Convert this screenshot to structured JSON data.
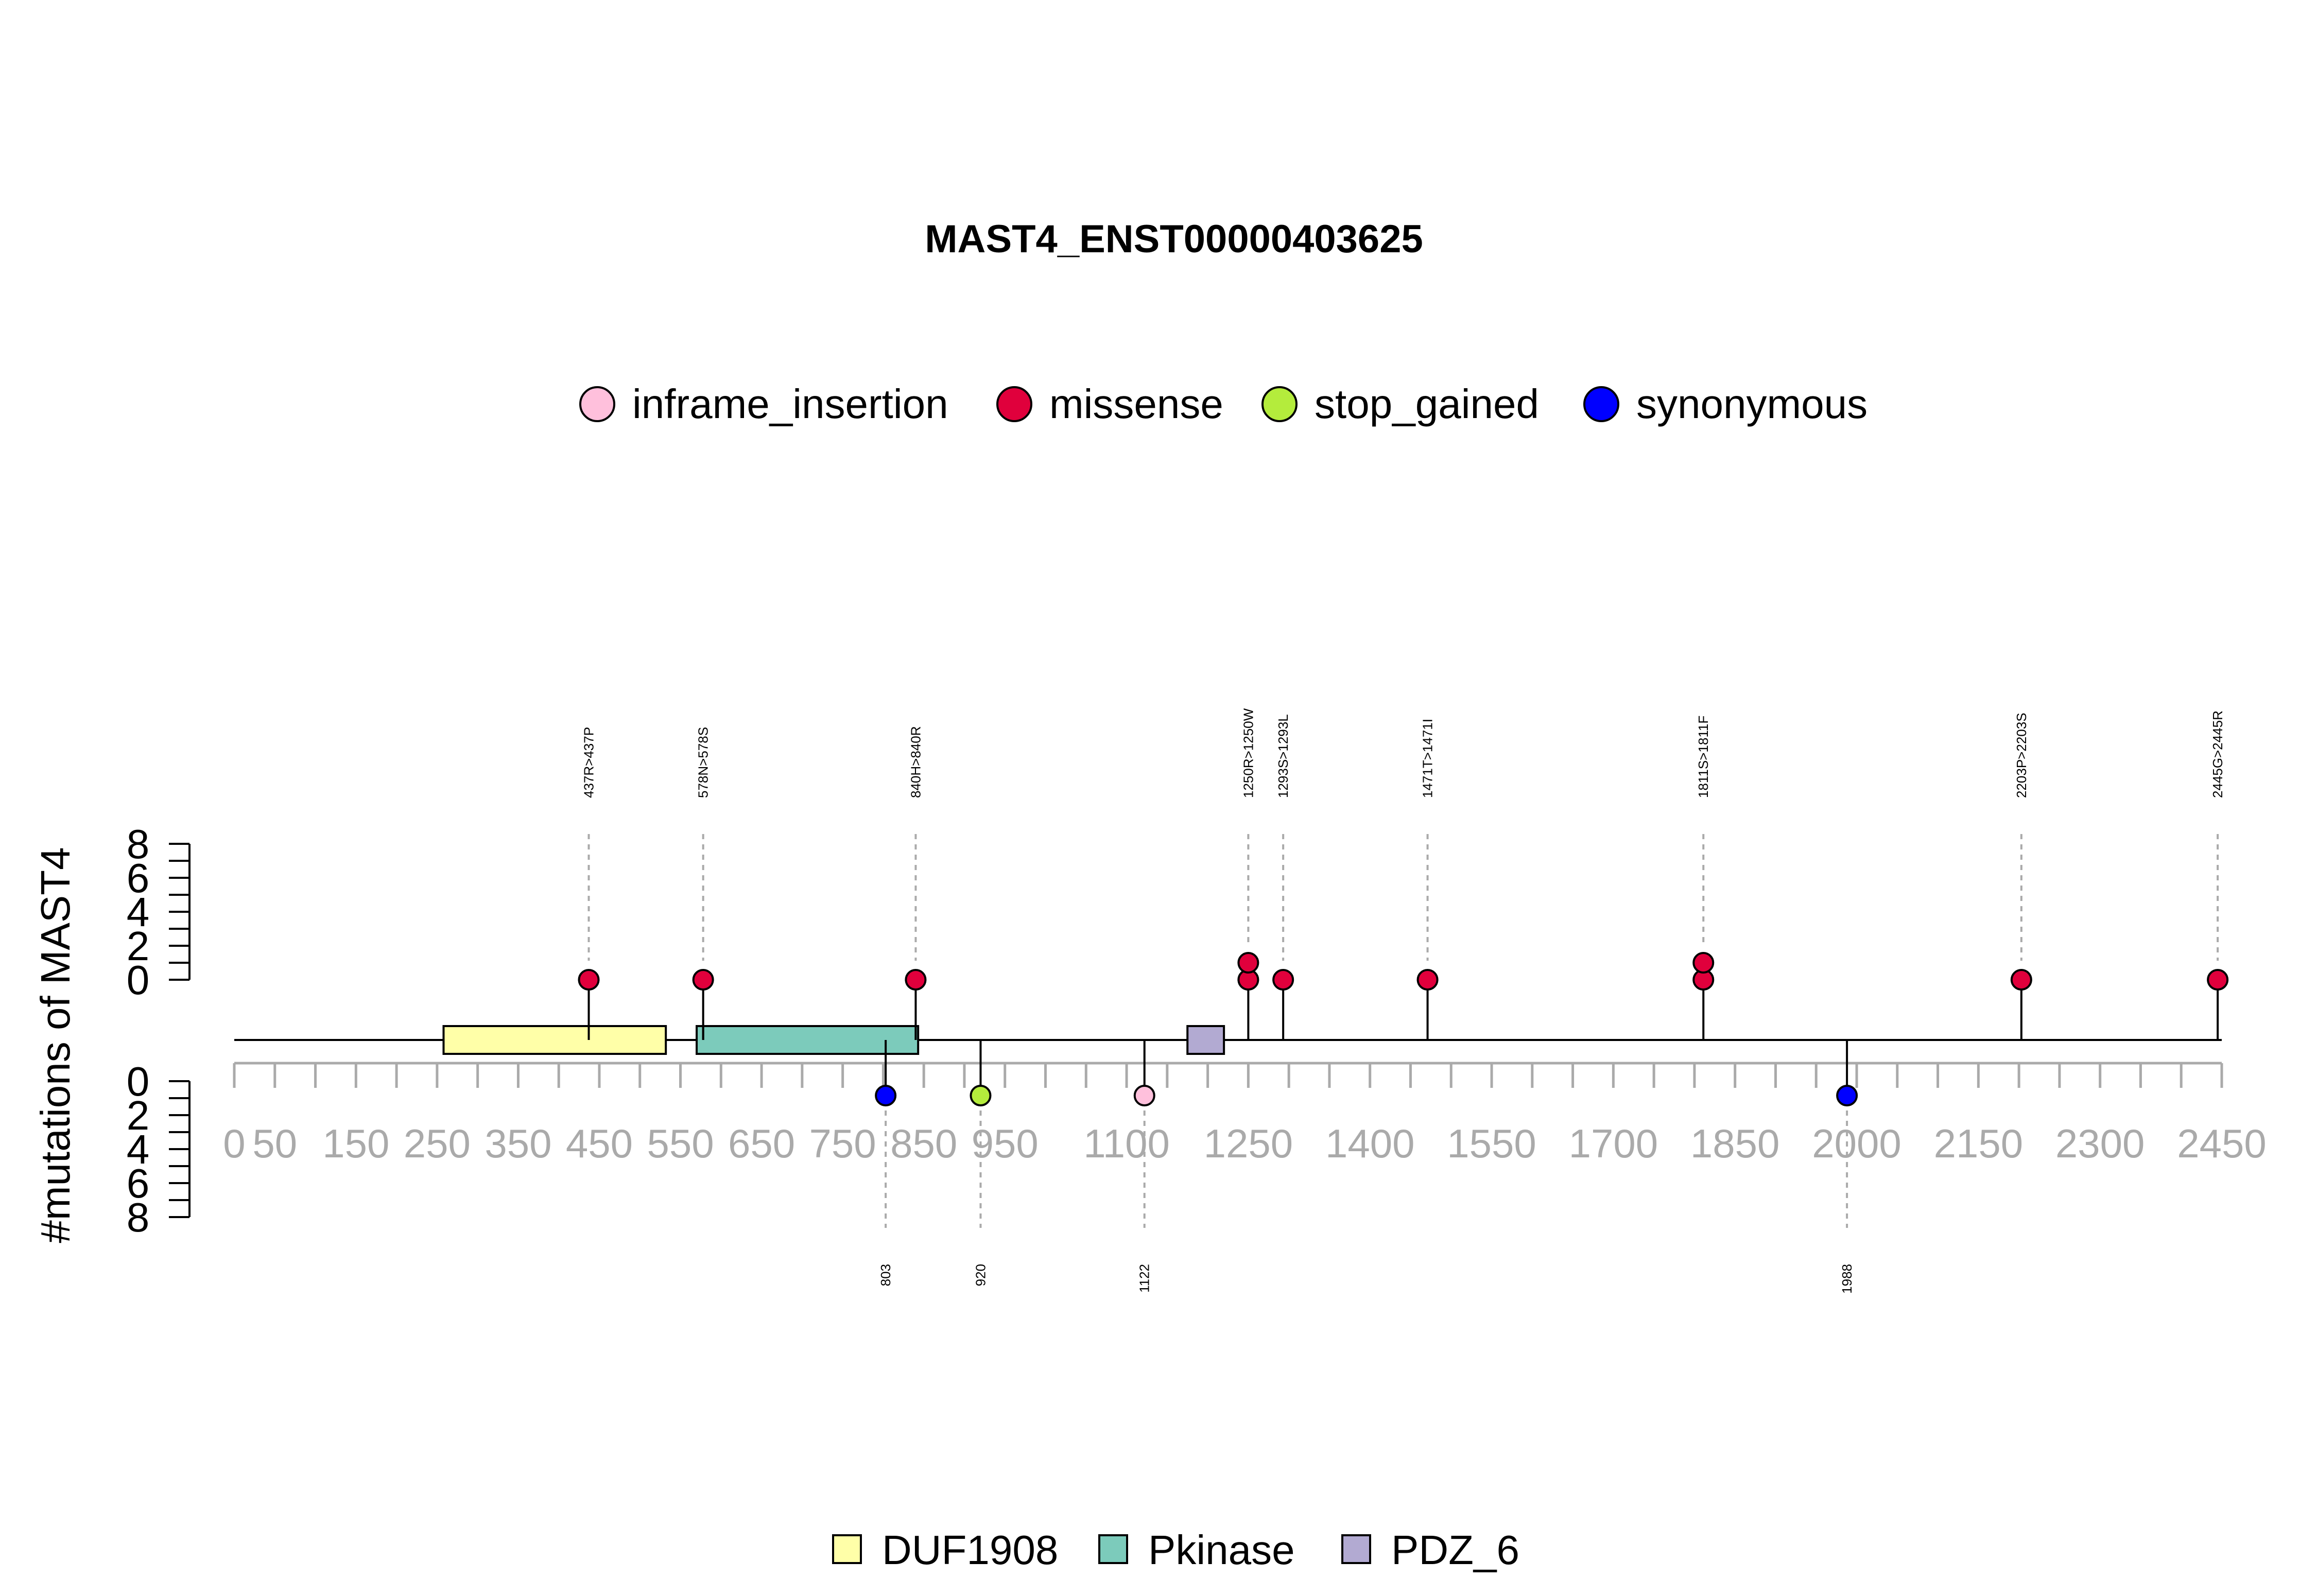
{
  "chart_data": {
    "type": "lollipop",
    "title": "MAST4_ENST00000403625",
    "ylabel": "#mutations of MAST4",
    "xlim": [
      0,
      2450
    ],
    "ylim": [
      0,
      8
    ],
    "y_ticks": [
      0,
      2,
      4,
      6,
      8
    ],
    "x_ticks": [
      0,
      50,
      150,
      250,
      350,
      450,
      550,
      650,
      750,
      850,
      950,
      1100,
      1250,
      1400,
      1550,
      1700,
      1850,
      2000,
      2150,
      2300,
      2450
    ],
    "x_tick_labels": [
      "0",
      "50",
      "150",
      "250",
      "350",
      "450",
      "550",
      "650",
      "750",
      "850",
      "950",
      "1100",
      "1250",
      "1400",
      "1550",
      "1700",
      "1850",
      "2000",
      "2150",
      "2300",
      "2450"
    ],
    "mutation_legend": [
      {
        "name": "inframe_insertion",
        "color": "#ffc0dc"
      },
      {
        "name": "missense",
        "color": "#e0003c"
      },
      {
        "name": "stop_gained",
        "color": "#b4ec3c"
      },
      {
        "name": "synonymous",
        "color": "#0000ff"
      }
    ],
    "domain_legend": [
      {
        "name": "DUF1908",
        "color": "#ffffa8"
      },
      {
        "name": "Pkinase",
        "color": "#7ccbbb"
      },
      {
        "name": "PDZ_6",
        "color": "#b2aad2"
      }
    ],
    "domains": [
      {
        "name": "DUF1908",
        "start": 258,
        "end": 532
      },
      {
        "name": "Pkinase",
        "start": 570,
        "end": 843
      },
      {
        "name": "PDZ_6",
        "start": 1175,
        "end": 1220
      }
    ],
    "mutations_top": [
      {
        "pos": 437,
        "count": 1,
        "type": "missense",
        "label": "437R>437P"
      },
      {
        "pos": 578,
        "count": 1,
        "type": "missense",
        "label": "578N>578S"
      },
      {
        "pos": 840,
        "count": 1,
        "type": "missense",
        "label": "840H>840R"
      },
      {
        "pos": 1250,
        "count": 2,
        "type": "missense",
        "label": "1250R>1250W"
      },
      {
        "pos": 1293,
        "count": 1,
        "type": "missense",
        "label": "1293S>1293L"
      },
      {
        "pos": 1471,
        "count": 1,
        "type": "missense",
        "label": "1471T>1471I"
      },
      {
        "pos": 1811,
        "count": 2,
        "type": "missense",
        "label": "1811S>1811F"
      },
      {
        "pos": 2203,
        "count": 1,
        "type": "missense",
        "label": "2203P>2203S"
      },
      {
        "pos": 2445,
        "count": 1,
        "type": "missense",
        "label": "2445G>2445R"
      }
    ],
    "mutations_bottom": [
      {
        "pos": 803,
        "count": 1,
        "type": "synonymous",
        "label": "803"
      },
      {
        "pos": 920,
        "count": 1,
        "type": "stop_gained",
        "label": "920"
      },
      {
        "pos": 1122,
        "count": 1,
        "type": "inframe_insertion",
        "label": "1122"
      },
      {
        "pos": 1988,
        "count": 1,
        "type": "synonymous",
        "label": "1988"
      }
    ]
  }
}
